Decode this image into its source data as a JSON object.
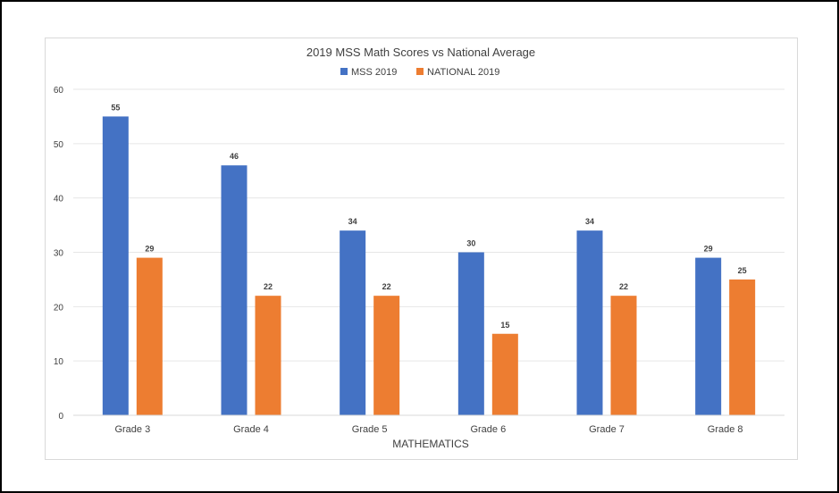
{
  "chart_data": {
    "type": "bar",
    "title": "2019 MSS Math Scores vs National Average",
    "xlabel": "MATHEMATICS",
    "ylabel": "",
    "ylim": [
      0,
      60
    ],
    "yticks": [
      0,
      10,
      20,
      30,
      40,
      50,
      60
    ],
    "grid": true,
    "legend_position": "top-center",
    "categories": [
      "Grade 3",
      "Grade 4",
      "Grade 5",
      "Grade 6",
      "Grade 7",
      "Grade 8"
    ],
    "series": [
      {
        "name": "MSS 2019",
        "color": "#4472c4",
        "values": [
          55,
          46,
          34,
          30,
          34,
          29
        ]
      },
      {
        "name": "NATIONAL 2019",
        "color": "#ed7d31",
        "values": [
          29,
          22,
          22,
          15,
          22,
          25
        ]
      }
    ]
  }
}
